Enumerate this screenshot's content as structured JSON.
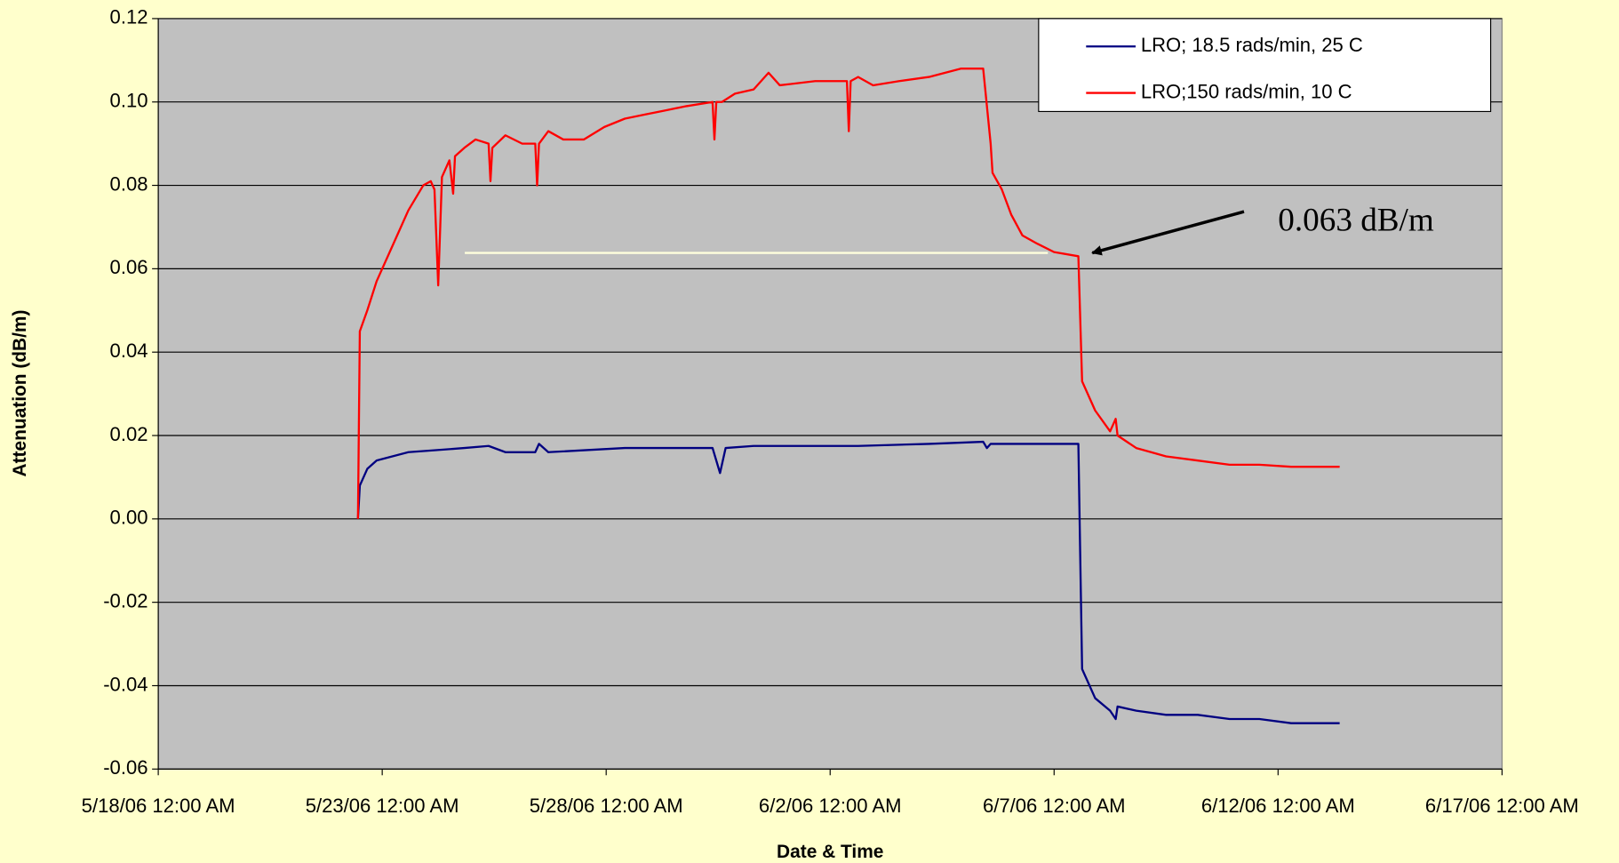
{
  "chart_data": {
    "type": "line",
    "xlabel": "Date & Time",
    "ylabel": "Attenuation (dB/m)",
    "annotation": "0.063 dB/m",
    "legend": "upper right",
    "grid": true,
    "ylim": [
      -0.06,
      0.12
    ],
    "yticks": [
      0.12,
      {
        "value": 0.1,
        "label": "0.10"
      },
      0.08,
      0.06,
      0.04,
      0.02,
      {
        "value": 0,
        "label": "0.00"
      },
      -0.02,
      -0.04,
      -0.06
    ],
    "xlim": [
      "2006-05-18T00:00",
      "2006-06-17T00:00"
    ],
    "xticks": [
      {
        "value": "2006-05-18T00:00",
        "label": "5/18/06 12:00 AM"
      },
      {
        "value": "2006-05-23T00:00",
        "label": "5/23/06 12:00 AM"
      },
      {
        "value": "2006-05-28T00:00",
        "label": "5/28/06 12:00 AM"
      },
      {
        "value": "2006-06-02T00:00",
        "label": "6/2/06 12:00 AM"
      },
      {
        "value": "2006-06-07T00:00",
        "label": "6/7/06 12:00 AM"
      },
      {
        "value": "2006-06-12T00:00",
        "label": "6/12/06 12:00 AM"
      },
      {
        "value": "2006-06-17T00:00",
        "label": "6/17/06 12:00 AM"
      }
    ],
    "series": [
      {
        "name": "LRO; 18.5 rads/min, 25 C",
        "color": "#000080",
        "x": [
          "2006-05-22T11:00",
          "2006-05-22T12:00",
          "2006-05-22T16:00",
          "2006-05-22T21:00",
          "2006-05-23T14:00",
          "2006-05-24T20:00",
          "2006-05-25T09:00",
          "2006-05-25T18:00",
          "2006-05-26T10:00",
          "2006-05-26T12:00",
          "2006-05-26T17:00",
          "2006-05-28T10:00",
          "2006-05-29T19:00",
          "2006-05-30T09:00",
          "2006-05-30T13:00",
          "2006-05-30T16:00",
          "2006-05-31T07:00",
          "2006-06-02T15:00",
          "2006-06-04T05:00",
          "2006-06-05T10:00",
          "2006-06-05T12:00",
          "2006-06-05T14:00",
          "2006-06-07T13:00",
          "2006-06-07T15:00",
          "2006-06-07T22:00",
          "2006-06-08T06:00",
          "2006-06-08T09:00",
          "2006-06-08T10:00",
          "2006-06-08T20:00",
          "2006-06-09T12:00",
          "2006-06-10T05:00",
          "2006-06-10T22:00",
          "2006-06-11T14:00",
          "2006-06-12T07:00",
          "2006-06-13T09:00"
        ],
        "values": [
          0.0,
          0.008,
          0.012,
          0.014,
          0.016,
          0.017,
          0.0175,
          0.016,
          0.016,
          0.018,
          0.016,
          0.017,
          0.017,
          0.017,
          0.011,
          0.017,
          0.0175,
          0.0175,
          0.018,
          0.0185,
          0.017,
          0.018,
          0.018,
          -0.036,
          -0.043,
          -0.046,
          -0.048,
          -0.045,
          -0.046,
          -0.047,
          -0.047,
          -0.048,
          -0.048,
          -0.049,
          -0.049
        ]
      },
      {
        "name": "LRO;150 rads/min, 10 C",
        "color": "#ff0000",
        "x": [
          "2006-05-22T11:00",
          "2006-05-22T12:00",
          "2006-05-22T16:00",
          "2006-05-22T21:00",
          "2006-05-23T06:00",
          "2006-05-23T14:00",
          "2006-05-23T22:00",
          "2006-05-24T02:00",
          "2006-05-24T04:00",
          "2006-05-24T06:00",
          "2006-05-24T08:00",
          "2006-05-24T12:00",
          "2006-05-24T14:00",
          "2006-05-24T15:00",
          "2006-05-24T20:00",
          "2006-05-25T02:00",
          "2006-05-25T09:00",
          "2006-05-25T10:00",
          "2006-05-25T11:00",
          "2006-05-25T18:00",
          "2006-05-26T03:00",
          "2006-05-26T10:00",
          "2006-05-26T11:00",
          "2006-05-26T12:00",
          "2006-05-26T17:00",
          "2006-05-27T01:00",
          "2006-05-27T12:00",
          "2006-05-27T23:00",
          "2006-05-28T10:00",
          "2006-05-28T21:00",
          "2006-05-29T08:00",
          "2006-05-29T19:00",
          "2006-05-30T09:00",
          "2006-05-30T10:00",
          "2006-05-30T11:00",
          "2006-05-30T14:00",
          "2006-05-30T21:00",
          "2006-05-31T07:00",
          "2006-05-31T15:00",
          "2006-05-31T21:00",
          "2006-06-01T16:00",
          "2006-06-02T09:00",
          "2006-06-02T10:00",
          "2006-06-02T11:00",
          "2006-06-02T15:00",
          "2006-06-02T23:00",
          "2006-06-03T13:00",
          "2006-06-04T05:00",
          "2006-06-04T22:00",
          "2006-06-05T10:00",
          "2006-06-05T12:00",
          "2006-06-05T14:00",
          "2006-06-05T15:00",
          "2006-06-05T20:00",
          "2006-06-06T01:00",
          "2006-06-06T07:00",
          "2006-06-06T15:00",
          "2006-06-07T00:00",
          "2006-06-07T13:00",
          "2006-06-07T15:00",
          "2006-06-07T22:00",
          "2006-06-08T06:00",
          "2006-06-08T09:00",
          "2006-06-08T10:00",
          "2006-06-08T20:00",
          "2006-06-09T12:00",
          "2006-06-10T05:00",
          "2006-06-10T22:00",
          "2006-06-11T14:00",
          "2006-06-12T07:00",
          "2006-06-13T09:00"
        ],
        "values": [
          0.0,
          0.045,
          0.05,
          0.057,
          0.066,
          0.074,
          0.08,
          0.081,
          0.079,
          0.056,
          0.082,
          0.086,
          0.078,
          0.087,
          0.089,
          0.091,
          0.09,
          0.081,
          0.089,
          0.092,
          0.09,
          0.09,
          0.08,
          0.09,
          0.093,
          0.091,
          0.091,
          0.094,
          0.096,
          0.097,
          0.098,
          0.099,
          0.1,
          0.091,
          0.1,
          0.1,
          0.102,
          0.103,
          0.107,
          0.104,
          0.105,
          0.105,
          0.093,
          0.105,
          0.106,
          0.104,
          0.105,
          0.106,
          0.108,
          0.108,
          0.099,
          0.09,
          0.083,
          0.079,
          0.073,
          0.068,
          0.066,
          0.064,
          0.063,
          0.033,
          0.026,
          0.021,
          0.024,
          0.02,
          0.017,
          0.015,
          0.014,
          0.013,
          0.013,
          0.0125,
          0.0125
        ]
      }
    ]
  }
}
